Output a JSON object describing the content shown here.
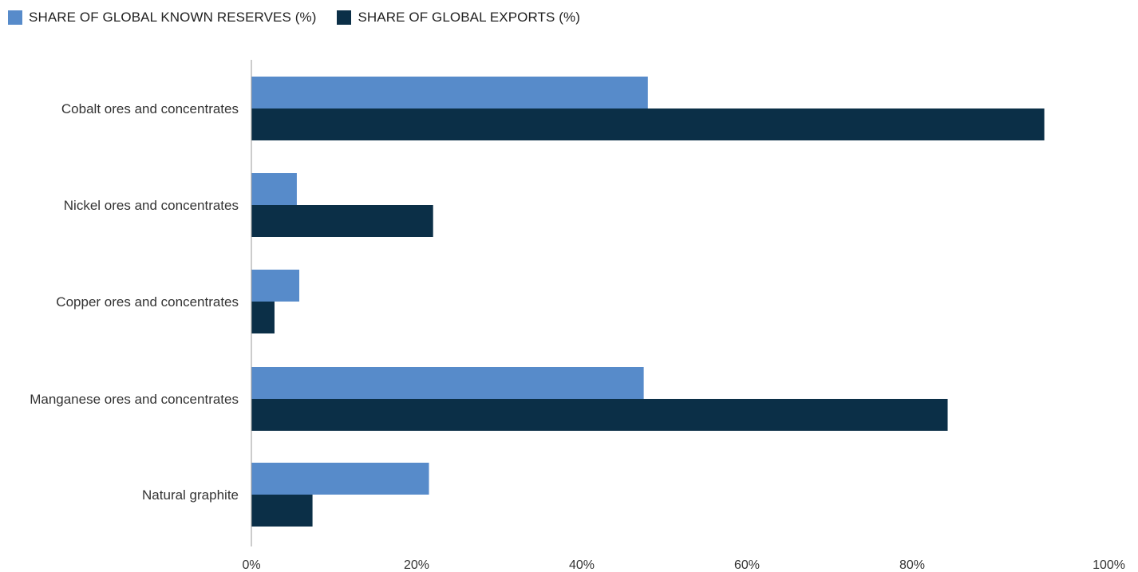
{
  "legend": {
    "items": [
      {
        "label": "SHARE OF GLOBAL KNOWN RESERVES (%)",
        "color": "#578BCA"
      },
      {
        "label": "SHARE OF GLOBAL EXPORTS (%)",
        "color": "#0B2F47"
      }
    ]
  },
  "chart_data": {
    "type": "bar",
    "orientation": "horizontal",
    "categories": [
      "Cobalt ores and concentrates",
      "Nickel ores and concentrates",
      "Copper ores and concentrates",
      "Manganese ores and concentrates",
      "Natural graphite"
    ],
    "series": [
      {
        "name": "SHARE OF GLOBAL KNOWN RESERVES (%)",
        "color": "#578BCA",
        "values": [
          48,
          5.5,
          5.8,
          47.5,
          21.5
        ]
      },
      {
        "name": "SHARE OF GLOBAL EXPORTS (%)",
        "color": "#0B2F47",
        "values": [
          96,
          22,
          2.8,
          84.3,
          7.4
        ]
      }
    ],
    "xlim": [
      0,
      100
    ],
    "xticks": [
      "0%",
      "20%",
      "40%",
      "60%",
      "80%",
      "100%"
    ],
    "grid": false,
    "legend_position": "top-left"
  }
}
